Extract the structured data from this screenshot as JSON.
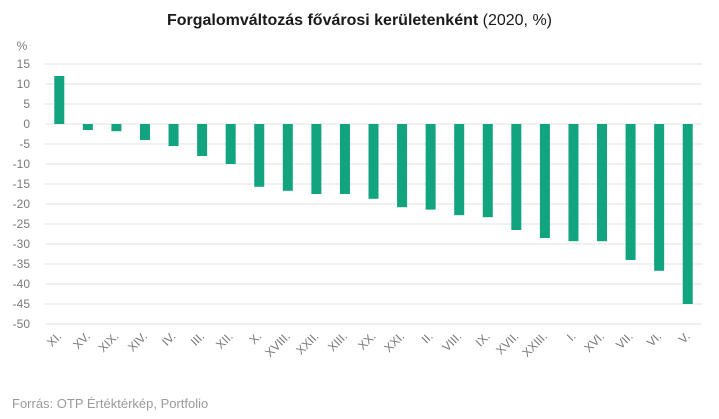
{
  "title": {
    "main": "Forgalomváltozás fővárosi kerületenként",
    "suffix": " (2020, %)"
  },
  "source": "Forrás: OTP Értéktérkép, Portfolio",
  "colors": {
    "bar": "#12a37f",
    "grid": "#e2e2e2",
    "axis_text": "#7a7a7a"
  },
  "chart_data": {
    "type": "bar",
    "title": "Forgalomváltozás fővárosi kerületenként (2020, %)",
    "xlabel": "",
    "ylabel": "%",
    "ylim": [
      -50,
      15
    ],
    "yticks": [
      15,
      10,
      5,
      0,
      -5,
      -10,
      -15,
      -20,
      -25,
      -30,
      -35,
      -40,
      -45,
      -50
    ],
    "grid": true,
    "categories": [
      "XI.",
      "XV.",
      "XIX.",
      "XIV.",
      "IV.",
      "III.",
      "XII.",
      "X.",
      "XVIII.",
      "XXII.",
      "XIII.",
      "XX.",
      "XXI.",
      "II.",
      "VIII.",
      "IX.",
      "XVII.",
      "XXIII.",
      "I.",
      "XVI.",
      "VII.",
      "VI.",
      "V."
    ],
    "values": [
      12,
      -1.5,
      -1.8,
      -4,
      -5.5,
      -8,
      -10,
      -15.7,
      -16.7,
      -17.5,
      -17.5,
      -18.7,
      -20.8,
      -21.4,
      -22.8,
      -23.3,
      -26.5,
      -28.5,
      -29.3,
      -29.3,
      -34,
      -36.7,
      -45
    ]
  }
}
